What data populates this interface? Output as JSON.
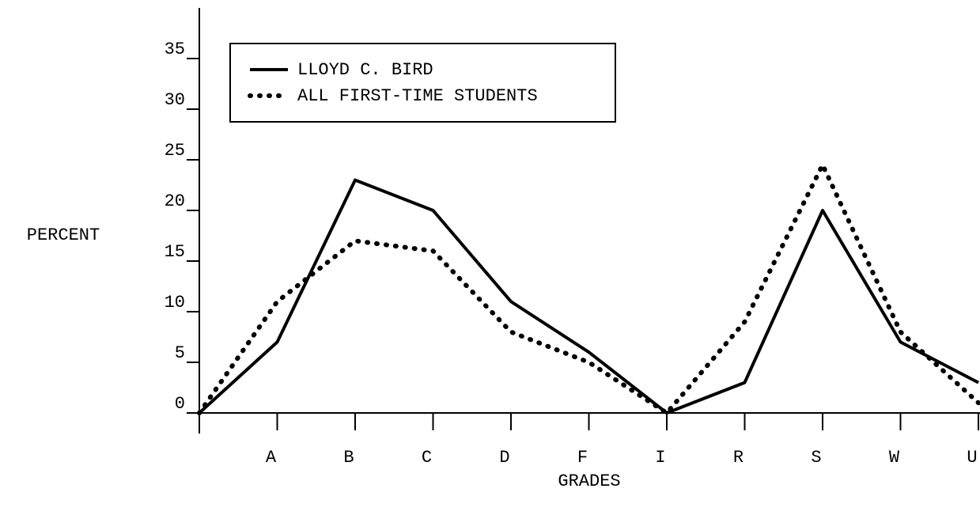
{
  "chart_data": {
    "type": "line",
    "xlabel": "GRADES",
    "ylabel": "PERCENT",
    "categories": [
      null,
      "A",
      "B",
      "C",
      "D",
      "F",
      "I",
      "R",
      "S",
      "W",
      "U"
    ],
    "series": [
      {
        "name": "LLOYD C. BIRD",
        "color": "#000000",
        "style": "solid",
        "values": [
          0,
          7,
          23,
          20,
          11,
          6,
          0,
          3,
          20,
          7,
          3
        ]
      },
      {
        "name": "ALL FIRST-TIME STUDENTS",
        "color": "#000000",
        "style": "dotted",
        "values": [
          0,
          11,
          17,
          16,
          8,
          5,
          0,
          9,
          24.5,
          8,
          1
        ]
      }
    ],
    "ylim": [
      0,
      40
    ],
    "yticks": [
      0,
      5,
      10,
      15,
      20,
      25,
      30,
      35
    ],
    "legend": "upper left"
  }
}
